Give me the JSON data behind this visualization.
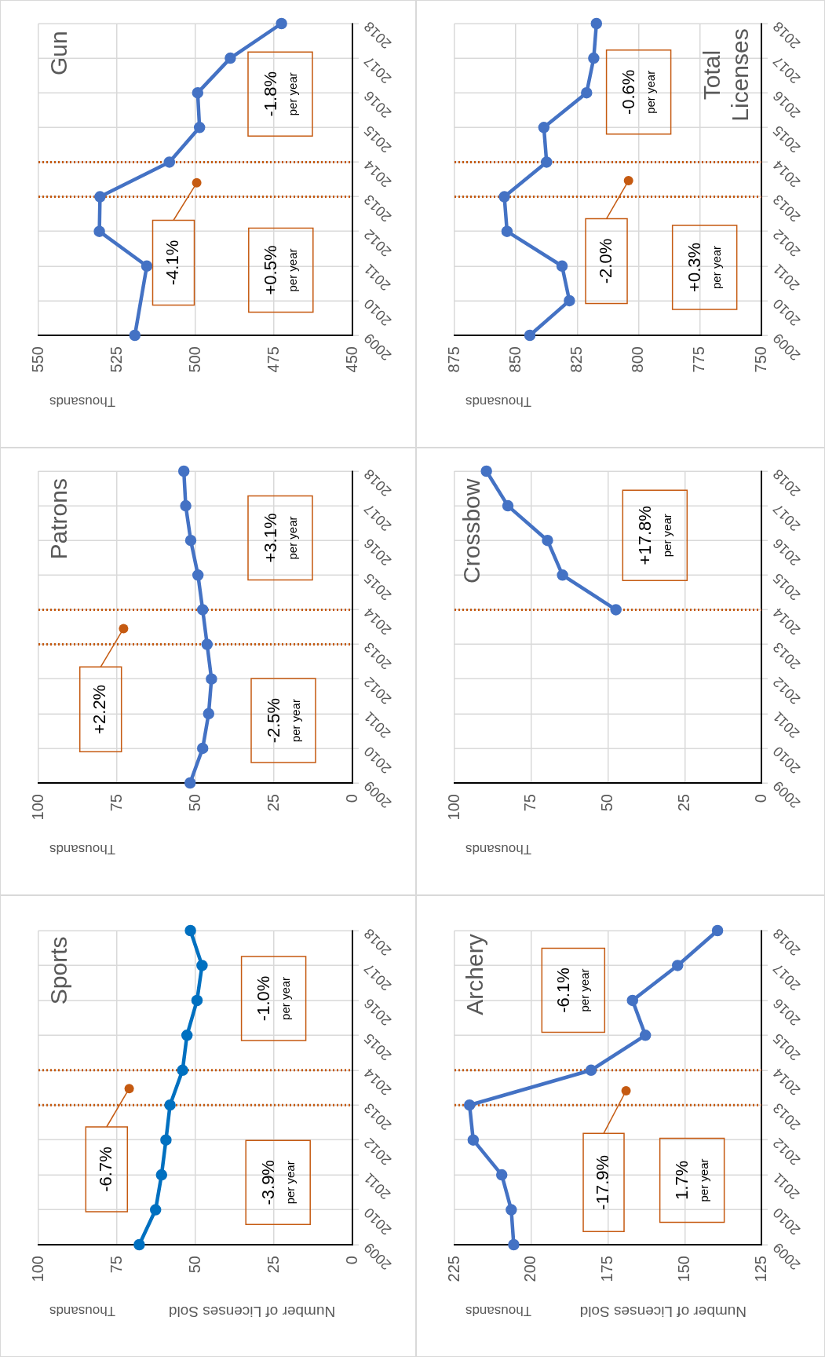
{
  "chart_data": [
    {
      "type": "line",
      "orientation": "horizontal",
      "title": "Sports",
      "xlabel": "Number of Licenses Sold",
      "categories": [
        "2018",
        "2017",
        "2016",
        "2015",
        "2014",
        "2013",
        "2012",
        "2011",
        "2010",
        "2009"
      ],
      "values": [
        51.6,
        47.9,
        49.5,
        52.7,
        54.1,
        58.1,
        59.4,
        60.8,
        62.7,
        67.9
      ],
      "color": "#0070c0",
      "xlim": [
        100,
        0
      ],
      "xticks": [
        100,
        75,
        50,
        25,
        0
      ],
      "grid": true,
      "marker": "circle",
      "ref_lines": [
        {
          "axis": "y",
          "value": "2013",
          "color": "#c55a11",
          "line_style": "dotted"
        },
        {
          "axis": "y",
          "value": "2014",
          "color": "#c55a11",
          "line_style": "dotted"
        }
      ],
      "annotations": [
        "Thousands",
        "-6.7%",
        "-3.9% per year",
        "-1.0% per year"
      ]
    },
    {
      "type": "line",
      "orientation": "horizontal",
      "title": "Patrons",
      "categories": [
        "2018",
        "2017",
        "2016",
        "2015",
        "2014",
        "2013",
        "2012",
        "2011",
        "2010",
        "2009"
      ],
      "values": [
        53.7,
        53.1,
        51.5,
        49.2,
        47.7,
        46.3,
        44.9,
        45.8,
        47.7,
        51.7
      ],
      "color": "#4472c4",
      "xlim": [
        100,
        0
      ],
      "xticks": [
        100,
        75,
        50,
        25,
        0
      ],
      "grid": true,
      "marker": "circle",
      "ref_lines": [
        {
          "axis": "y",
          "value": "2013",
          "color": "#c55a11",
          "line_style": "dotted"
        },
        {
          "axis": "y",
          "value": "2014",
          "color": "#c55a11",
          "line_style": "dotted"
        }
      ],
      "annotations": [
        "Thousands",
        "+2.2%",
        "-2.5% per year",
        "+3.1% per year"
      ]
    },
    {
      "type": "line",
      "orientation": "horizontal",
      "title": "Gun",
      "categories": [
        "2018",
        "2017",
        "2016",
        "2015",
        "2014",
        "2013",
        "2012",
        "2011",
        "2010",
        "2009"
      ],
      "values": [
        472.6,
        488.9,
        499.3,
        498.7,
        508.3,
        530.4,
        530.6,
        515.5,
        null,
        519.3
      ],
      "color": "#4472c4",
      "xlim": [
        550,
        450
      ],
      "xticks": [
        550,
        525,
        500,
        475,
        450
      ],
      "grid": true,
      "marker": "circle",
      "ref_lines": [
        {
          "axis": "y",
          "value": "2013",
          "color": "#c55a11",
          "line_style": "dotted"
        },
        {
          "axis": "y",
          "value": "2014",
          "color": "#c55a11",
          "line_style": "dotted"
        }
      ],
      "annotations": [
        "Thousands",
        "-4.1%",
        "+0.5% per year",
        "-1.8% per year"
      ]
    },
    {
      "type": "line",
      "orientation": "horizontal",
      "title": "Archery",
      "xlabel": "Number of Licenses Sold",
      "categories": [
        "2018",
        "2017",
        "2016",
        "2015",
        "2014",
        "2013",
        "2012",
        "2011",
        "2010",
        "2009"
      ],
      "values": [
        139.3,
        152.3,
        167.0,
        162.8,
        180.5,
        220.1,
        218.9,
        209.6,
        206.5,
        205.7
      ],
      "color": "#4472c4",
      "xlim": [
        225,
        125
      ],
      "xticks": [
        225,
        200,
        175,
        150,
        125
      ],
      "grid": true,
      "marker": "circle",
      "ref_lines": [
        {
          "axis": "y",
          "value": "2013",
          "color": "#c55a11",
          "line_style": "dotted"
        },
        {
          "axis": "y",
          "value": "2014",
          "color": "#c55a11",
          "line_style": "dotted"
        }
      ],
      "annotations": [
        "Thousands",
        "-17.9%",
        "1.7% per year",
        "-6.1% per year"
      ]
    },
    {
      "type": "line",
      "orientation": "horizontal",
      "title": "Crossbow",
      "categories": [
        "2018",
        "2017",
        "2016",
        "2015",
        "2014",
        "2013",
        "2012",
        "2011",
        "2010",
        "2009"
      ],
      "values": [
        89.6,
        82.6,
        69.7,
        64.8,
        47.4,
        null,
        null,
        null,
        null,
        null
      ],
      "color": "#4472c4",
      "xlim": [
        100,
        0
      ],
      "xticks": [
        100,
        75,
        50,
        25,
        0
      ],
      "grid": true,
      "marker": "circle",
      "ref_lines": [
        {
          "axis": "y",
          "value": "2014",
          "color": "#c55a11",
          "line_style": "dotted"
        }
      ],
      "annotations": [
        "Thousands",
        "+17.8% per year"
      ]
    },
    {
      "type": "line",
      "orientation": "horizontal",
      "title": "Total\nLicenses",
      "categories": [
        "2018",
        "2017",
        "2016",
        "2015",
        "2014",
        "2013",
        "2012",
        "2011",
        "2010",
        "2009"
      ],
      "values": [
        817.2,
        818.3,
        821.2,
        838.6,
        837.5,
        854.7,
        853.6,
        831.2,
        828.2,
        844.3
      ],
      "color": "#4472c4",
      "xlim": [
        875,
        750
      ],
      "xticks": [
        875,
        850,
        825,
        800,
        775,
        750
      ],
      "grid": true,
      "marker": "circle",
      "ref_lines": [
        {
          "axis": "y",
          "value": "2013",
          "color": "#c55a11",
          "line_style": "dotted"
        },
        {
          "axis": "y",
          "value": "2014",
          "color": "#c55a11",
          "line_style": "dotted"
        }
      ],
      "annotations": [
        "Thousands",
        "-2.0%",
        "+0.3% per year",
        "-0.6% per year"
      ]
    }
  ]
}
